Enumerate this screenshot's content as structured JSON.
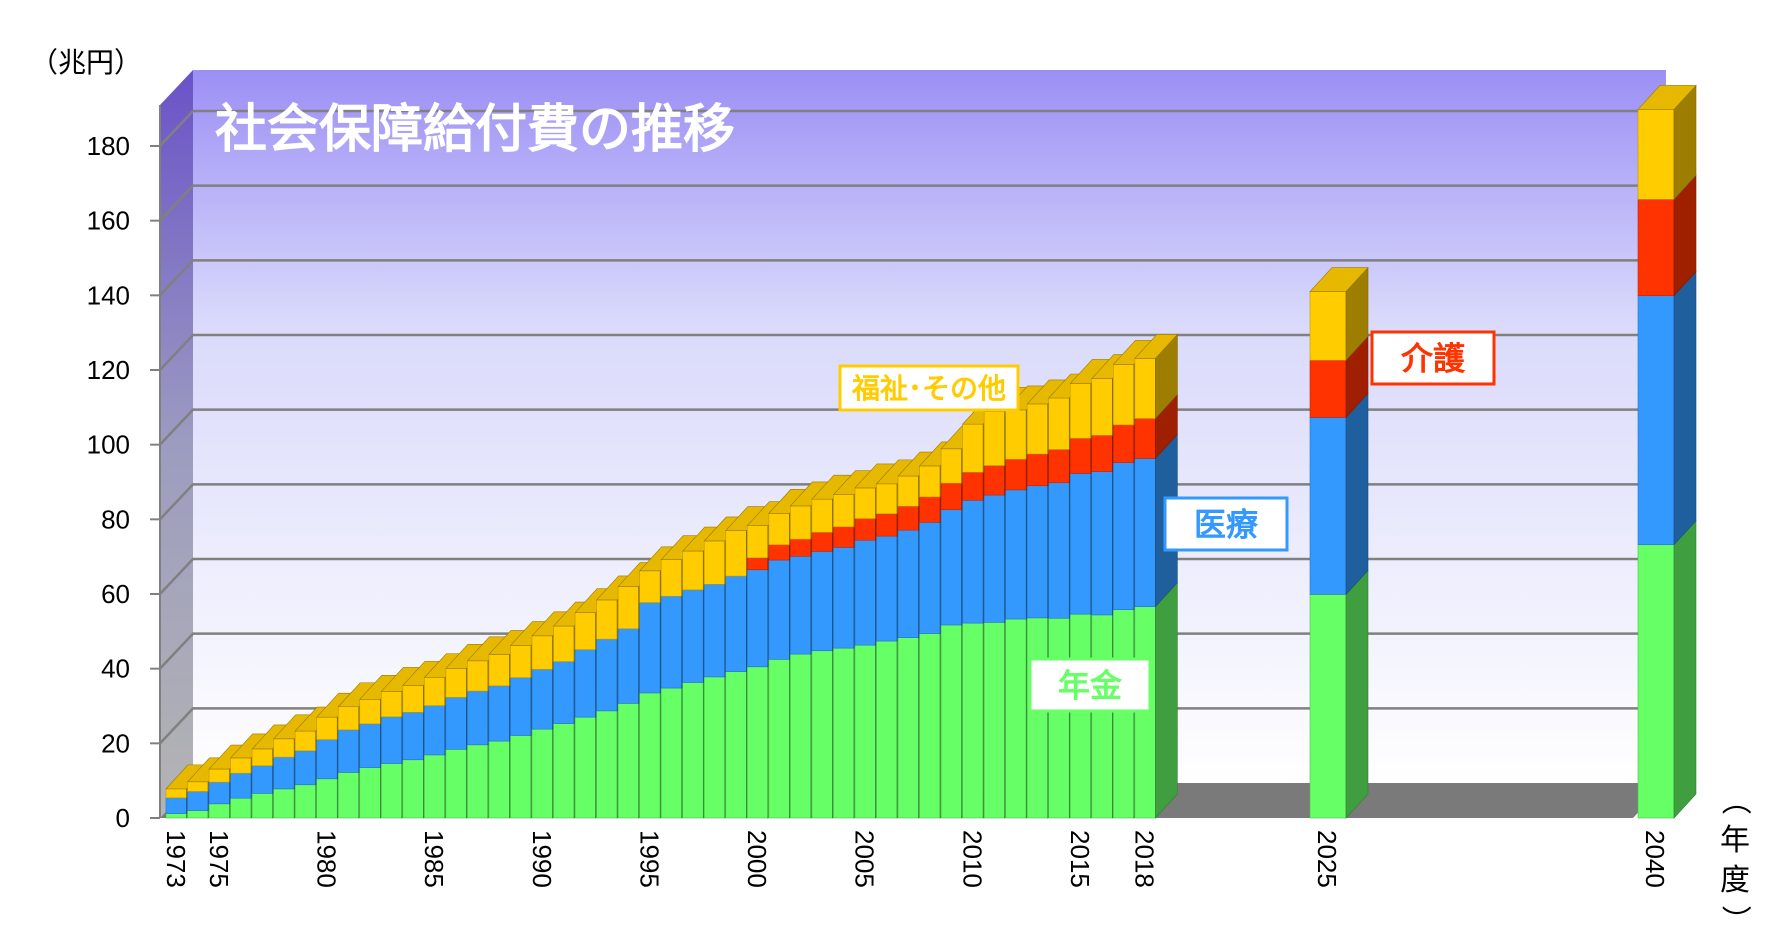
{
  "chart_data": {
    "type": "bar",
    "stacked": true,
    "style": "3d",
    "title": "社会保障給付費の推移",
    "ylabel": "（兆円）",
    "xlabel": "（年度）",
    "ylim": [
      0,
      180
    ],
    "yticks": [
      "0",
      "20",
      "40",
      "60",
      "80",
      "100",
      "120",
      "140",
      "160",
      "180"
    ],
    "grid": true,
    "xtick_labels": [
      "1973",
      "1975",
      "1980",
      "1985",
      "1990",
      "1995",
      "2000",
      "2005",
      "2010",
      "2015",
      "2018",
      "2025",
      "2040"
    ],
    "categories": [
      "1973",
      "1974",
      "1975",
      "1976",
      "1977",
      "1978",
      "1979",
      "1980",
      "1981",
      "1982",
      "1983",
      "1984",
      "1985",
      "1986",
      "1987",
      "1988",
      "1989",
      "1990",
      "1991",
      "1992",
      "1993",
      "1994",
      "1995",
      "1996",
      "1997",
      "1998",
      "1999",
      "2000",
      "2001",
      "2002",
      "2003",
      "2004",
      "2005",
      "2006",
      "2007",
      "2008",
      "2009",
      "2010",
      "2011",
      "2012",
      "2013",
      "2014",
      "2015",
      "2016",
      "2017",
      "2018",
      "2025",
      "2040"
    ],
    "series": [
      {
        "name": "年金",
        "color": "#66ff66",
        "values": [
          1.2,
          2.0,
          3.8,
          5.3,
          6.6,
          7.8,
          8.9,
          10.5,
          12.2,
          13.5,
          14.6,
          15.6,
          16.9,
          18.4,
          19.6,
          20.6,
          22.1,
          23.8,
          25.3,
          27.0,
          28.7,
          30.7,
          33.5,
          34.8,
          36.3,
          37.8,
          39.2,
          40.5,
          42.5,
          43.9,
          44.8,
          45.5,
          46.3,
          47.4,
          48.3,
          49.4,
          51.7,
          52.2,
          52.4,
          53.3,
          53.6,
          53.5,
          54.6,
          54.4,
          55.8,
          56.6,
          59.9,
          73.2
        ]
      },
      {
        "name": "医療",
        "color": "#3399ff",
        "values": [
          4.2,
          5.1,
          5.8,
          6.7,
          7.4,
          8.5,
          9.1,
          10.5,
          11.4,
          11.7,
          12.5,
          12.7,
          13.2,
          13.9,
          14.4,
          14.8,
          15.5,
          16.0,
          16.6,
          18.1,
          19.2,
          20.0,
          24.2,
          24.6,
          24.8,
          24.8,
          25.6,
          26.0,
          26.6,
          26.2,
          26.6,
          27.0,
          28.1,
          28.1,
          28.8,
          29.8,
          30.9,
          32.9,
          34.1,
          34.6,
          35.4,
          36.3,
          37.7,
          38.4,
          39.4,
          39.7,
          47.4,
          66.7
        ]
      },
      {
        "name": "介護",
        "color": "#ff3300",
        "values": [
          0,
          0,
          0,
          0,
          0,
          0,
          0,
          0,
          0,
          0,
          0,
          0,
          0,
          0,
          0,
          0,
          0,
          0,
          0,
          0,
          0,
          0,
          0,
          0,
          0,
          0,
          0,
          3.2,
          4.1,
          4.6,
          5.1,
          5.5,
          5.8,
          6.0,
          6.4,
          6.8,
          7.1,
          7.5,
          7.9,
          8.2,
          8.5,
          8.9,
          9.4,
          9.7,
          10.1,
          10.7,
          15.3,
          25.8
        ]
      },
      {
        "name": "福祉・その他",
        "color": "#ffcc00",
        "values": [
          2.4,
          2.6,
          3.5,
          4.1,
          4.5,
          4.9,
          5.3,
          6.0,
          6.2,
          6.6,
          6.8,
          7.2,
          7.5,
          7.8,
          8.1,
          8.4,
          8.6,
          9.0,
          9.5,
          9.9,
          10.5,
          11.3,
          8.5,
          9.8,
          10.4,
          11.6,
          12.2,
          8.6,
          8.4,
          8.9,
          8.9,
          8.6,
          8.2,
          8.0,
          8.1,
          8.3,
          9.2,
          12.9,
          14.5,
          13.2,
          13.4,
          13.8,
          14.7,
          15.2,
          16.2,
          16.1,
          18.4,
          24.1
        ]
      }
    ],
    "legend_labels": [
      {
        "series": "福祉・その他",
        "text": "福祉･その他",
        "color": "#ffcc00"
      },
      {
        "series": "医療",
        "text": "医療",
        "color": "#3399ff"
      },
      {
        "series": "介護",
        "text": "介護",
        "color": "#ff3300"
      },
      {
        "series": "年金",
        "text": "年金",
        "color": "#66ff66"
      }
    ]
  }
}
